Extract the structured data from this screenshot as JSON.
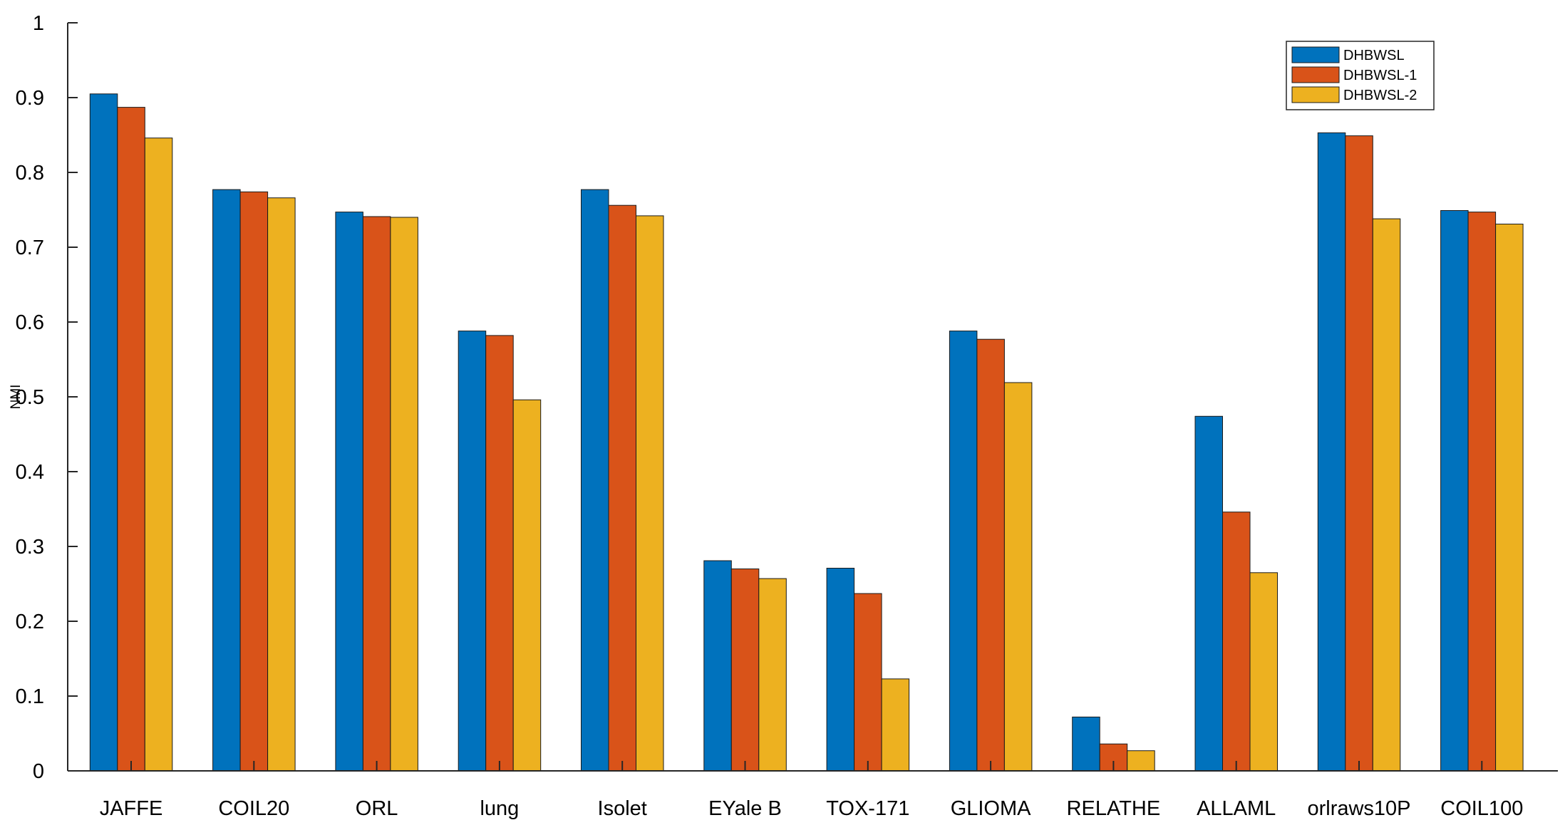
{
  "chart_data": {
    "type": "bar",
    "title": "",
    "xlabel": "",
    "ylabel": "NMI",
    "ylim": [
      0,
      1
    ],
    "yticks": [
      0,
      0.1,
      0.2,
      0.3,
      0.4,
      0.5,
      0.6,
      0.7,
      0.8,
      0.9,
      1
    ],
    "ytick_labels": [
      "0",
      "0.1",
      "0.2",
      "0.3",
      "0.4",
      "0.5",
      "0.6",
      "0.7",
      "0.8",
      "0.9",
      "1"
    ],
    "grid": false,
    "legend_position": "top-right",
    "categories": [
      "JAFFE",
      "COIL20",
      "ORL",
      "lung",
      "Isolet",
      "EYale B",
      "TOX-171",
      "GLIOMA",
      "RELATHE",
      "ALLAML",
      "orlraws10P",
      "COIL100"
    ],
    "series": [
      {
        "name": "DHBWSL",
        "color": "#0072BD",
        "values": [
          0.905,
          0.777,
          0.747,
          0.588,
          0.777,
          0.281,
          0.271,
          0.588,
          0.072,
          0.474,
          0.853,
          0.749
        ]
      },
      {
        "name": "DHBWSL-1",
        "color": "#D95319",
        "values": [
          0.887,
          0.774,
          0.741,
          0.582,
          0.756,
          0.27,
          0.237,
          0.577,
          0.036,
          0.346,
          0.849,
          0.747
        ]
      },
      {
        "name": "DHBWSL-2",
        "color": "#EDB120",
        "values": [
          0.846,
          0.766,
          0.74,
          0.496,
          0.742,
          0.257,
          0.123,
          0.519,
          0.027,
          0.265,
          0.738,
          0.731
        ]
      }
    ]
  }
}
